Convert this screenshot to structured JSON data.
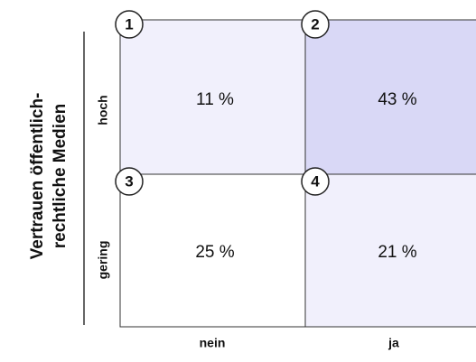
{
  "y_axis": {
    "title_lines": [
      "Vertrauen öffentlich-",
      "rechtliche Medien"
    ],
    "rows": [
      "hoch",
      "gering"
    ]
  },
  "x_axis": {
    "columns": [
      "nein",
      "ja"
    ]
  },
  "cells": [
    {
      "number": "1",
      "text": "11 %"
    },
    {
      "number": "2",
      "text": "43 %"
    },
    {
      "number": "3",
      "text": "25 %"
    },
    {
      "number": "4",
      "text": "21 %"
    }
  ]
}
